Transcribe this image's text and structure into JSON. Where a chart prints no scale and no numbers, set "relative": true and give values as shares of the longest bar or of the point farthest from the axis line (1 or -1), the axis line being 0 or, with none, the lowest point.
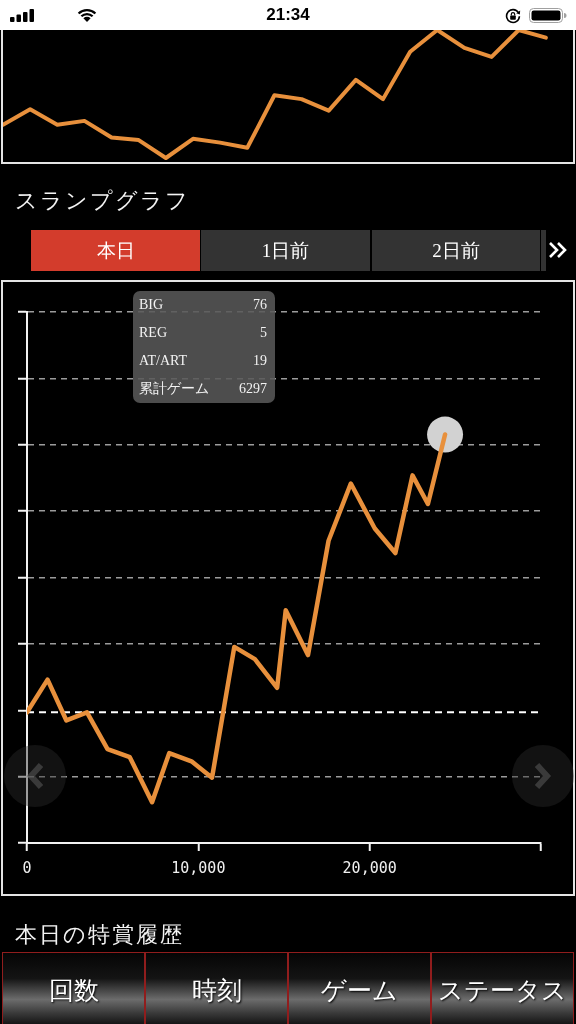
{
  "chart_data": [
    {
      "type": "line",
      "relative": true,
      "categories": [
        null,
        null,
        null,
        null,
        null,
        null,
        null,
        null,
        null,
        null,
        null,
        null,
        null,
        null,
        null,
        null,
        null,
        null,
        null,
        null,
        null,
        null
      ],
      "values": [
        0.26,
        0.38,
        0.26,
        0.29,
        0.16,
        0.14,
        0,
        0.15,
        0.12,
        0.08,
        0.49,
        0.46,
        0.37,
        0.61,
        0.46,
        0.83,
        1,
        0.86,
        0.79,
        1,
        0.94,
        null
      ],
      "color": "#e8903c",
      "marker": "none",
      "tick_labels": false,
      "annotations": [
        "21:34"
      ]
    },
    {
      "type": "line",
      "title": "スランプグラフ",
      "relative": true,
      "series": [
        {
          "color": "#e8903c",
          "x": [
            0,
            1200,
            2300,
            3500,
            4700,
            6000,
            7300,
            8300,
            9600,
            10800,
            12100,
            13300,
            14600,
            15100,
            16400,
            17600,
            18900,
            20300,
            21500,
            22500,
            23400,
            24400
          ],
          "values": [
            0.32,
            0.4,
            0.3,
            0.32,
            0.23,
            0.21,
            0.1,
            0.22,
            0.2,
            0.16,
            0.48,
            0.45,
            0.38,
            0.57,
            0.46,
            0.74,
            0.88,
            0.77,
            0.71,
            0.9,
            0.83,
            1
          ]
        },
        {
          "type": "scatter",
          "color": "#d2d2d2",
          "marker": "circle",
          "x": [
            24400
          ],
          "values": [
            1
          ]
        }
      ],
      "marker": "none",
      "xlim": [
        0,
        30000
      ],
      "xticks": [
        0,
        {
          "value": 10000,
          "label": "10,000"
        },
        {
          "value": 20000,
          "label": "20,000"
        },
        {
          "value": 30000,
          "label": null
        }
      ],
      "grid": "y",
      "tick_labels": "x",
      "ref_lines": [
        {
          "axis": "y",
          "value": 0.32,
          "color": "#ffffff",
          "line_style": "dashed"
        }
      ],
      "annotations": [
        "本日",
        "1日前",
        "2日前",
        "BIG 76",
        "REG 5",
        "AT/ART 19",
        "累計ゲーム 6297",
        "本日の特賞履歴",
        "回数",
        "時刻",
        "ゲーム",
        "ステータス"
      ]
    }
  ]
}
